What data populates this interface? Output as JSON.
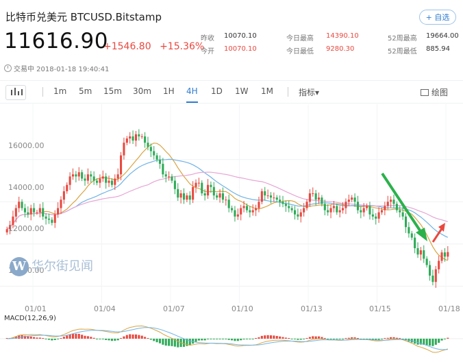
{
  "header": {
    "title": "比特币兑美元  BTCUSD.Bitstamp",
    "favorite_label": "+ 自选",
    "price": "11616.90",
    "change_abs": "+1546.80",
    "change_pct": "+15.36%"
  },
  "stats": {
    "prev_close_label": "昨收",
    "prev_close": "10070.10",
    "open_label": "今开",
    "open": "10070.10",
    "day_high_label": "今日最高",
    "day_high": "14390.10",
    "day_low_label": "今日最低",
    "day_low": "9280.30",
    "wk52_high_label": "52周最高",
    "wk52_high": "19664.00",
    "wk52_low_label": "52周最低",
    "wk52_low": "885.94"
  },
  "status": {
    "text": "交易中 2018-01-18 19:40:41"
  },
  "toolbar": {
    "intervals": [
      "1m",
      "5m",
      "15m",
      "30m",
      "1H",
      "4H",
      "1D",
      "1W",
      "1M"
    ],
    "active_interval": "4H",
    "indicator_label": "指标▾",
    "draw_label": "绘图"
  },
  "watermark": {
    "text": "华尔街见闻"
  },
  "macd": {
    "label": "MACD(12,26,9)"
  },
  "colors": {
    "up": "#e8483f",
    "down": "#2eaa58",
    "accent": "#2f7dd1"
  },
  "chart_data": {
    "type": "candlestick",
    "y_ticks": [
      16000,
      14000,
      12000,
      10000
    ],
    "y_tick_labels": [
      "16000.00",
      "14000.00",
      "12000.00",
      "10000.00"
    ],
    "x_tick_labels": [
      "01/01",
      "01/04",
      "01/07",
      "01/10",
      "01/13",
      "01/15",
      "01/18"
    ],
    "ylim": [
      9200,
      18300
    ],
    "closes": [
      12700,
      12900,
      13300,
      13700,
      14000,
      13700,
      13500,
      13400,
      13700,
      13500,
      13500,
      13700,
      13300,
      13200,
      13150,
      13000,
      13400,
      13700,
      14100,
      14500,
      14800,
      15200,
      15300,
      15200,
      15400,
      15100,
      15000,
      15300,
      15200,
      15000,
      14900,
      15100,
      15200,
      14900,
      15000,
      14800,
      15100,
      15300,
      16200,
      16800,
      17000,
      17100,
      16900,
      17200,
      17100,
      17100,
      16800,
      16600,
      16400,
      16200,
      16000,
      15800,
      15300,
      15200,
      15200,
      15000,
      14600,
      14200,
      14400,
      14100,
      14300,
      14100,
      14700,
      14900,
      14900,
      14400,
      14300,
      14800,
      14700,
      14300,
      14200,
      14400,
      14100,
      14100,
      13700,
      13600,
      13300,
      13400,
      13700,
      13800,
      13600,
      13500,
      13600,
      13700,
      14000,
      14500,
      14300,
      14300,
      14200,
      14200,
      14100,
      14000,
      13900,
      13800,
      13700,
      13600,
      13400,
      13300,
      13500,
      13700,
      14000,
      14400,
      14400,
      14100,
      14200,
      13900,
      13600,
      13500,
      13700,
      13800,
      13500,
      13600,
      13700,
      14000,
      14100,
      14200,
      14000,
      13600,
      13500,
      13700,
      13800,
      13400,
      13300,
      13200,
      13500,
      13600,
      13800,
      14000,
      14100,
      13900,
      13600,
      13500,
      13300,
      12800,
      12500,
      12300,
      11800,
      11500,
      11700,
      11300,
      11000,
      10500,
      10200,
      10800,
      11200,
      11600,
      11400,
      11616
    ]
  }
}
